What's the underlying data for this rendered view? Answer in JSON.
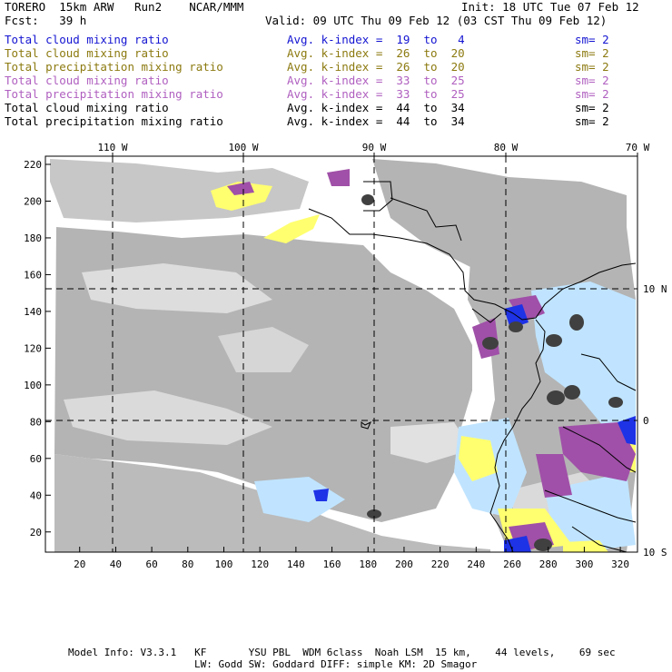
{
  "header": {
    "model": "TORERO  15km ARW   Run2    NCAR/MMM",
    "init": "Init: 18 UTC Tue 07 Feb 12",
    "fcst": "Fcst:   39 h",
    "valid": "Valid: 09 UTC Thu 09 Feb 12 (03 CST Thu 09 Feb 12)"
  },
  "legend": [
    {
      "name": "Total cloud mixing ratio",
      "kindex": "Avg. k-index =  19  to   4",
      "sm": "sm= 2",
      "color": "#1414d2"
    },
    {
      "name": "Total cloud mixing ratio",
      "kindex": "Avg. k-index =  26  to  20",
      "sm": "sm= 2",
      "color": "#8c7a10"
    },
    {
      "name": "Total precipitation mixing ratio",
      "kindex": "Avg. k-index =  26  to  20",
      "sm": "sm= 2",
      "color": "#8c7a10"
    },
    {
      "name": "Total cloud mixing ratio",
      "kindex": "Avg. k-index =  33  to  25",
      "sm": "sm= 2",
      "color": "#b060c0"
    },
    {
      "name": "Total precipitation mixing ratio",
      "kindex": "Avg. k-index =  33  to  25",
      "sm": "sm= 2",
      "color": "#b060c0"
    },
    {
      "name": "Total cloud mixing ratio",
      "kindex": "Avg. k-index =  44  to  34",
      "sm": "sm= 2",
      "color": "#000000"
    },
    {
      "name": "Total precipitation mixing ratio",
      "kindex": "Avg. k-index =  44  to  34",
      "sm": "sm= 2",
      "color": "#000000"
    }
  ],
  "map": {
    "lon_labels": [
      "110 W",
      "100 W",
      "90 W",
      "80 W",
      "70 W"
    ],
    "lat_labels": [
      "10 N",
      "0",
      "10 S"
    ],
    "y_ticks": [
      "220",
      "200",
      "180",
      "160",
      "140",
      "120",
      "100",
      "80",
      "60",
      "40",
      "20"
    ],
    "x_ticks": [
      "20",
      "40",
      "60",
      "80",
      "100",
      "120",
      "140",
      "160",
      "180",
      "200",
      "220",
      "240",
      "260",
      "280",
      "300",
      "320"
    ],
    "colors": {
      "cloud_gray": "#b4b4b4",
      "dark_core": "#404040",
      "yellow": "#ffff70",
      "purple": "#a050a8",
      "light_blue": "#c0e4ff",
      "blue": "#1e32e6",
      "coast": "#000000"
    }
  },
  "footer": {
    "line1": "Model Info: V3.3.1   KF       YSU PBL  WDM 6class  Noah LSM  15 km,    44 levels,    69 sec",
    "line2": "LW: Godd SW: Goddard DIFF: simple KM: 2D Smagor"
  }
}
